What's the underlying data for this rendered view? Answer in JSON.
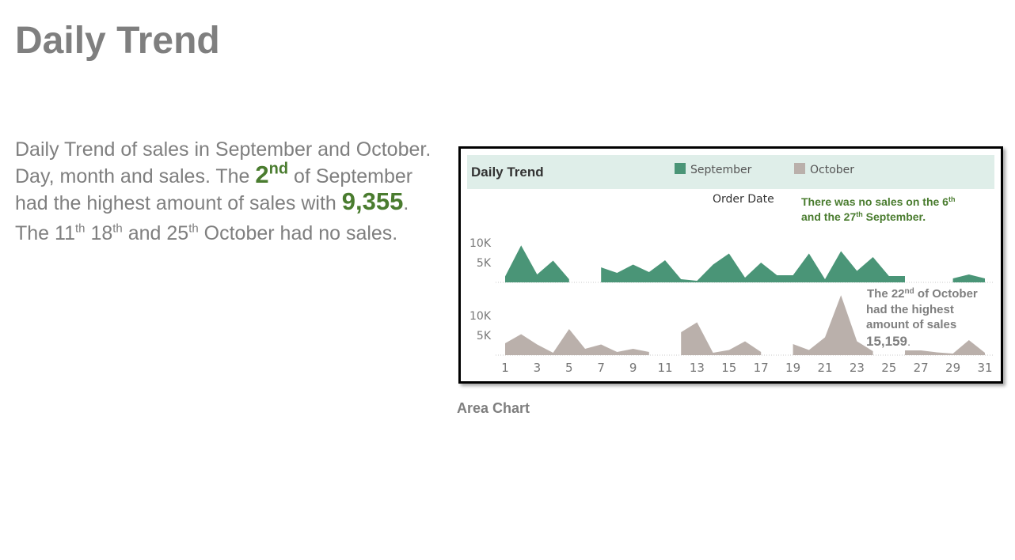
{
  "slide": {
    "title": "Daily Trend",
    "paragraph1": {
      "part1": "Daily Trend of sales in September and October. Day, month and sales. The ",
      "highlight_num": "2",
      "highlight_sup": "nd",
      "part2": " of September had the highest amount of sales with ",
      "highlight_value": "9,355",
      "part3": "."
    },
    "paragraph2": {
      "p1": "The 11",
      "s1": "th",
      "p2": " 18",
      "s2": "th",
      "p3": "  and 25",
      "s3": "th",
      "p4": " October had no sales."
    },
    "caption": "Area Chart"
  },
  "chart_data": {
    "type": "area",
    "title": "Daily Trend",
    "xlabel": "Order Date",
    "ylabel": "",
    "header_bg": "#dfeee9",
    "x_tick_labels": [
      "1",
      "3",
      "5",
      "7",
      "9",
      "11",
      "13",
      "15",
      "17",
      "19",
      "21",
      "23",
      "25",
      "27",
      "29",
      "31"
    ],
    "y_tick_labels": [
      "10K",
      "5K"
    ],
    "ylim": [
      0,
      16000
    ],
    "x": [
      1,
      2,
      3,
      4,
      5,
      6,
      7,
      8,
      9,
      10,
      11,
      12,
      13,
      14,
      15,
      16,
      17,
      18,
      19,
      20,
      21,
      22,
      23,
      24,
      25,
      26,
      27,
      28,
      29,
      30,
      31
    ],
    "legend_position": "top",
    "series": [
      {
        "name": "September",
        "color": "#4a9577",
        "values": [
          1500,
          9355,
          2000,
          5500,
          800,
          null,
          3800,
          2400,
          4500,
          2600,
          5600,
          800,
          400,
          4500,
          7300,
          1200,
          5000,
          1800,
          1800,
          7300,
          800,
          7900,
          2900,
          6400,
          1600,
          1600,
          null,
          null,
          1000,
          2000,
          1000
        ]
      },
      {
        "name": "October",
        "color": "#bab0ab",
        "values": [
          3000,
          5300,
          2700,
          600,
          6600,
          1600,
          2700,
          800,
          1600,
          800,
          null,
          5800,
          8300,
          600,
          1300,
          3500,
          800,
          null,
          2800,
          1300,
          4500,
          15159,
          3500,
          1000,
          null,
          1200,
          1200,
          700,
          400,
          3800,
          600
        ]
      }
    ],
    "annotations": {
      "september": {
        "line1a": "There was no sales on the 6",
        "line1sup": "th",
        "line2a": "and the 27",
        "line2sup": "th",
        "line2b": " September."
      },
      "october": {
        "line1a": "The 22",
        "line1sup": "nd",
        "line1b": " of October",
        "line2": "had the highest",
        "line3": "amount of sales",
        "value": "15,159",
        "value_suffix": "."
      }
    }
  }
}
